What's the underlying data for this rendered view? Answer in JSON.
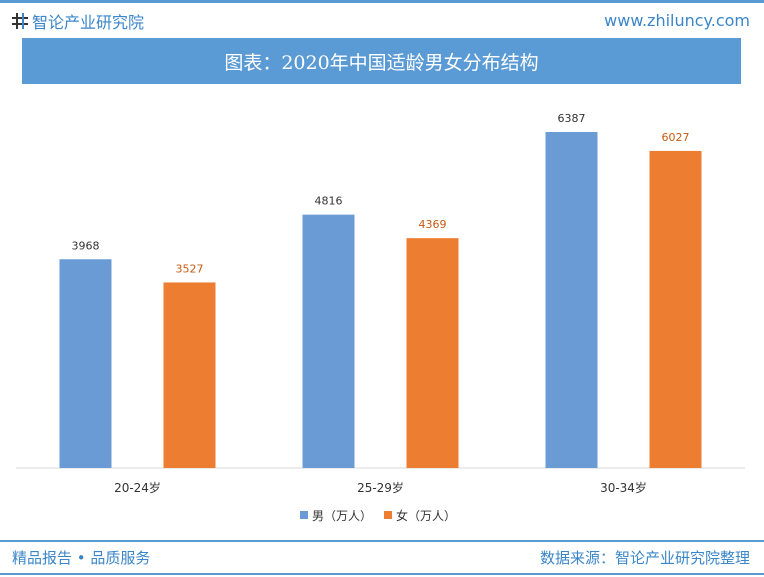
{
  "header": {
    "brand_name": "智论产业研究院",
    "site_url": "www.zhiluncy.com",
    "title": "图表：2020年中国适龄男女分布结构"
  },
  "colors": {
    "male": "#6a9bd5",
    "female": "#ed7d31",
    "female_label": "#c55a11",
    "accent": "#5b9bd5",
    "brand_text": "#3b86c8"
  },
  "footer": {
    "left": "精品报告 • 品质服务",
    "right": "数据来源：智论产业研究院整理"
  },
  "chart_data": {
    "type": "bar",
    "title": "图表：2020年中国适龄男女分布结构",
    "categories": [
      "20-24岁",
      "25-29岁",
      "30-34岁"
    ],
    "series": [
      {
        "name": "男（万人）",
        "values": [
          3968,
          4816,
          6387
        ]
      },
      {
        "name": "女（万人）",
        "values": [
          3527,
          4369,
          6027
        ]
      }
    ],
    "xlabel": "",
    "ylabel": "",
    "ylim": [
      0,
      7000
    ],
    "legend": "bottom",
    "grid": false
  }
}
